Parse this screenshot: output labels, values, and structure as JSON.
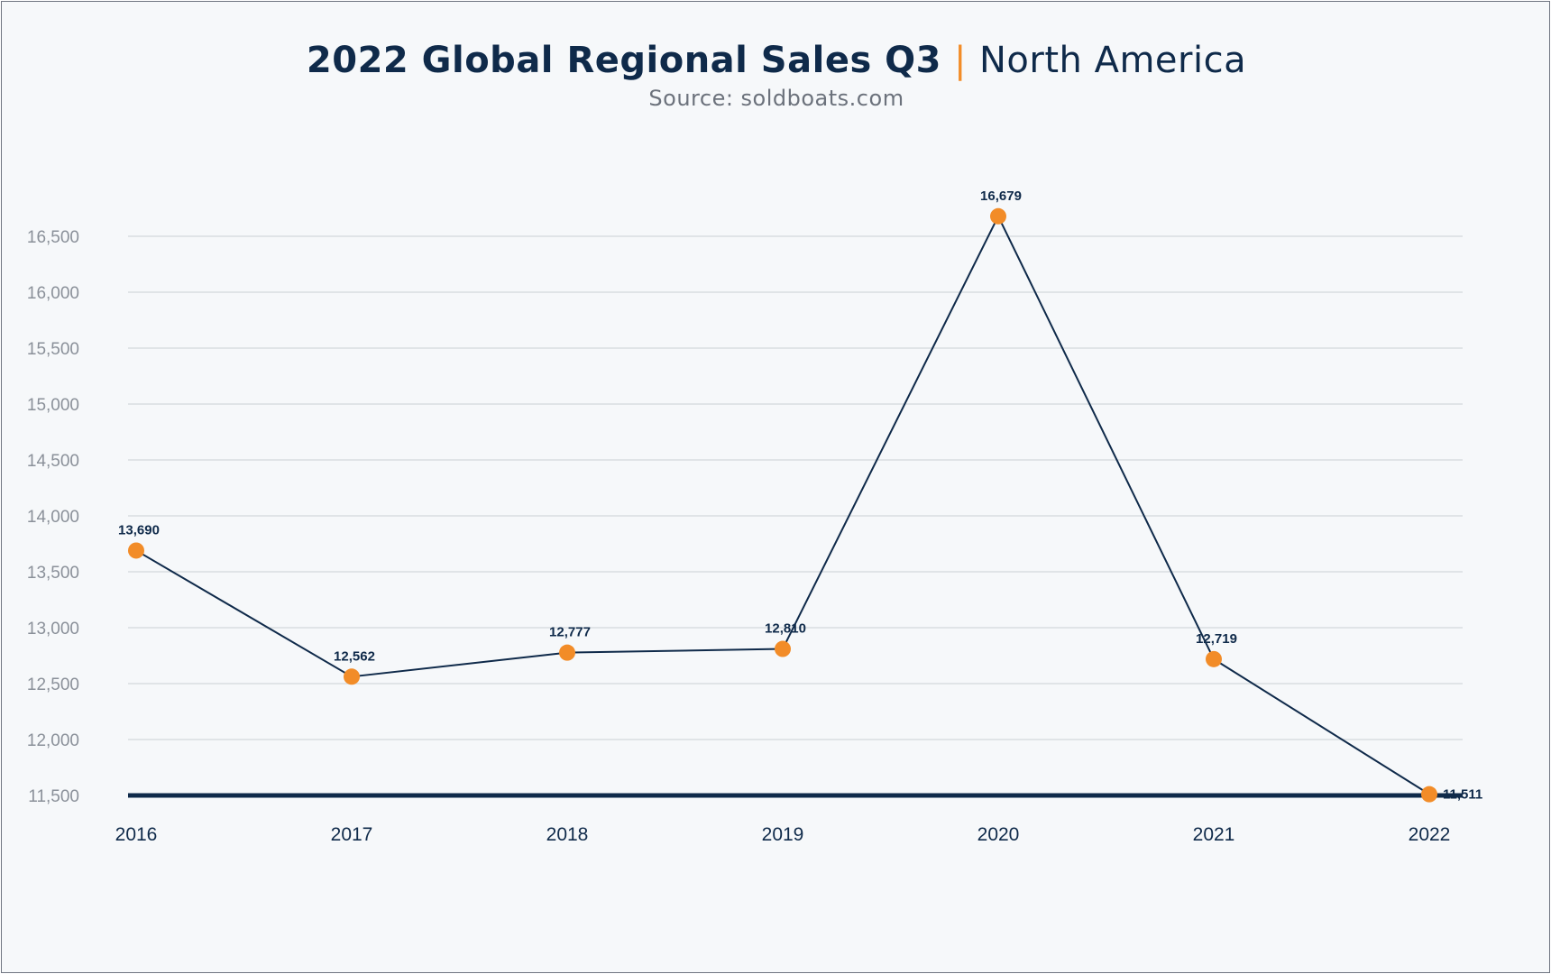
{
  "colors": {
    "background": "#f6f8fa",
    "line": "#0f2a4a",
    "marker": "#f28c28",
    "grid": "#d3d7dc",
    "baseline": "#0f2a4a",
    "ytick": "#8a9099"
  },
  "chart_data": {
    "type": "line",
    "title": "2022 Global Regional Sales Q3",
    "title_region": "North America",
    "title_separator": "|",
    "subtitle": "Source: soldboats.com",
    "xlabel": "",
    "ylabel": "",
    "categories": [
      "2016",
      "2017",
      "2018",
      "2019",
      "2020",
      "2021",
      "2022"
    ],
    "series": [
      {
        "values": [
          13690,
          12562,
          12777,
          12810,
          16679,
          12719,
          11511
        ],
        "data_labels": [
          "13,690",
          "12,562",
          "12,777",
          "12,810",
          "16,679",
          "12,719",
          "11,511"
        ]
      }
    ],
    "ylim": [
      11500,
      16500
    ],
    "yticks": [
      11500,
      12000,
      12500,
      13000,
      13500,
      14000,
      14500,
      15000,
      15500,
      16000,
      16500
    ],
    "ytick_labels": [
      "11,500",
      "12,000",
      "12,500",
      "13,000",
      "13,500",
      "14,000",
      "14,500",
      "15,000",
      "15,500",
      "16,000",
      "16,500"
    ],
    "grid": true,
    "legend": "none"
  }
}
